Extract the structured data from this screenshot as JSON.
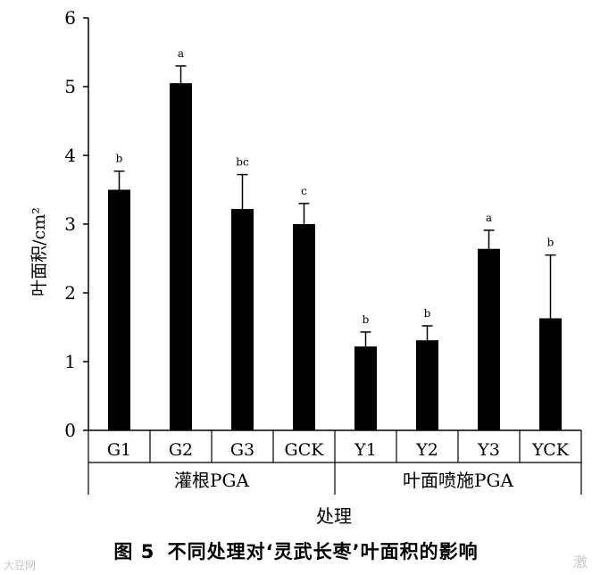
{
  "chart_data": {
    "type": "bar",
    "categories": [
      "G1",
      "G2",
      "G3",
      "GCK",
      "Y1",
      "Y2",
      "Y3",
      "YCK"
    ],
    "values": [
      3.5,
      5.05,
      3.22,
      3.0,
      1.22,
      1.31,
      2.64,
      1.63
    ],
    "errors": [
      0.27,
      0.25,
      0.5,
      0.3,
      0.21,
      0.21,
      0.27,
      0.92
    ],
    "significance": [
      "b",
      "a",
      "bc",
      "c",
      "b",
      "b",
      "a",
      "b"
    ],
    "groups": [
      {
        "label": "灌根PGA",
        "categories": [
          "G1",
          "G2",
          "G3",
          "GCK"
        ]
      },
      {
        "label": "叶面喷施PGA",
        "categories": [
          "Y1",
          "Y2",
          "Y3",
          "YCK"
        ]
      }
    ],
    "xlabel": "处理",
    "ylabel": "叶面积/cm²",
    "ylim": [
      0,
      6
    ],
    "yticks": [
      "0",
      "1",
      "2",
      "3",
      "4",
      "5",
      "6"
    ],
    "bar_color": "#000000"
  },
  "caption": {
    "figure_no": "图 5",
    "text": "不同处理对‘灵武长枣’叶面积的影响"
  },
  "watermark": {
    "left": "大豆网",
    "right": "激"
  }
}
